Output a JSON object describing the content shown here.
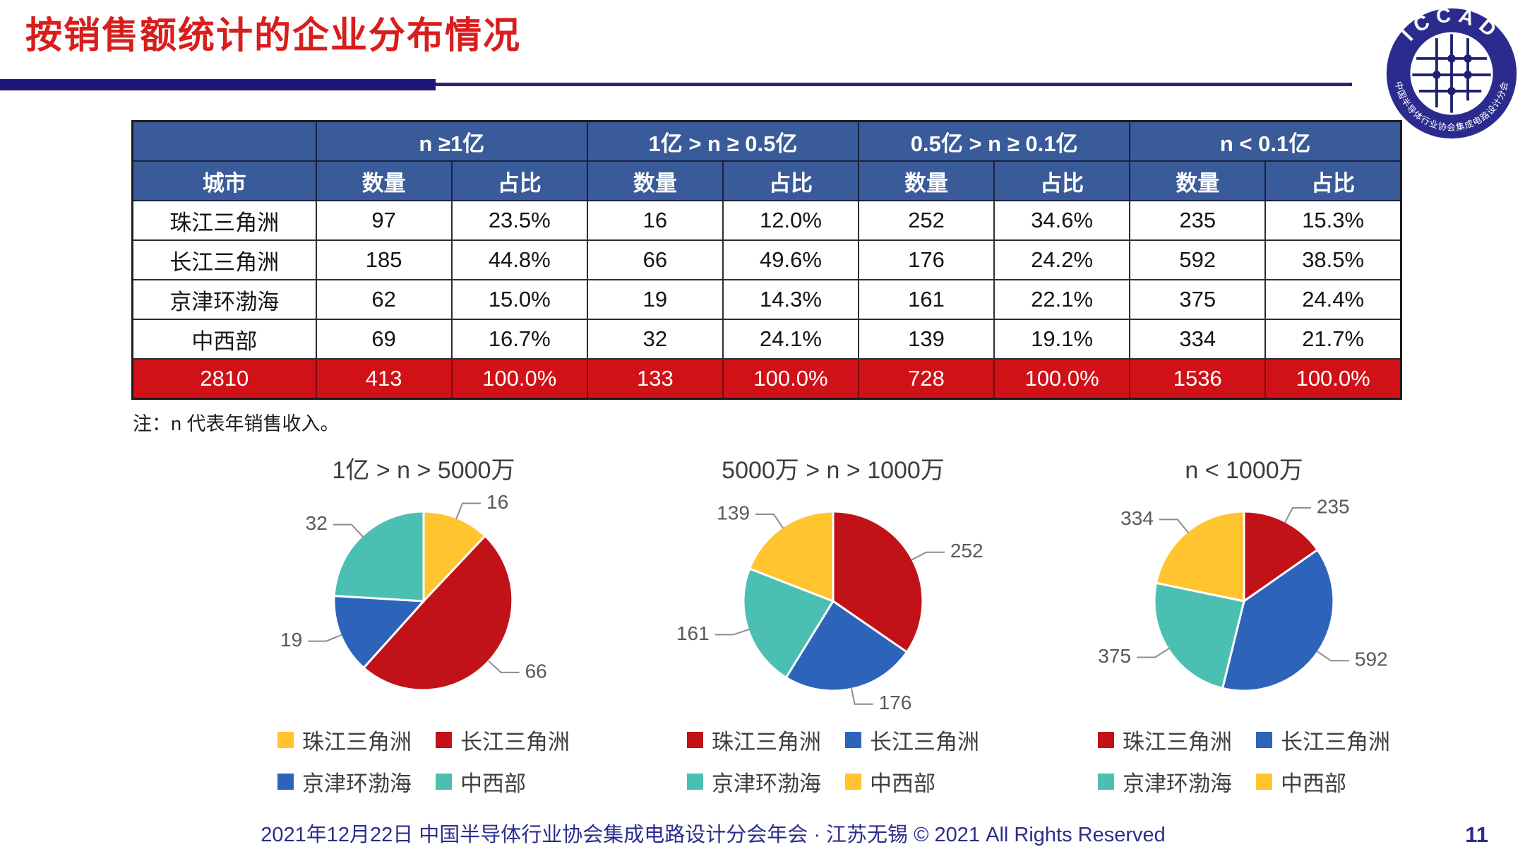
{
  "slide": {
    "title": "按销售额统计的企业分布情况",
    "note": "注：n 代表年销售收入。",
    "footer": "2021年12月22日 中国半导体行业协会集成电路设计分会年会 · 江苏无锡 © 2021 All Rights Reserved",
    "page_number": "11",
    "logo": {
      "text": "ICCAD",
      "subtext": "中国半导体行业协会集成电路设计分会"
    }
  },
  "colors": {
    "title_red": "#d91d1d",
    "navy_bar": "#1d1678",
    "header_blue": "#3a5b99",
    "total_red": "#d01117",
    "pie_yellow": "#ffc42e",
    "pie_red": "#c11218",
    "pie_blue": "#2d64ba",
    "pie_teal": "#4bc0b2",
    "label_gray": "#595959",
    "footer_navy": "#2b2d8c"
  },
  "table": {
    "group_headers": [
      "n ≥1亿",
      "1亿 > n ≥ 0.5亿",
      "0.5亿 > n ≥ 0.1亿",
      "n < 0.1亿"
    ],
    "sub_headers": {
      "city": "城市",
      "count": "数量",
      "share": "占比"
    },
    "rows": [
      {
        "city": "珠江三角洲",
        "cells": [
          "97",
          "23.5%",
          "16",
          "12.0%",
          "252",
          "34.6%",
          "235",
          "15.3%"
        ]
      },
      {
        "city": "长江三角洲",
        "cells": [
          "185",
          "44.8%",
          "66",
          "49.6%",
          "176",
          "24.2%",
          "592",
          "38.5%"
        ]
      },
      {
        "city": "京津环渤海",
        "cells": [
          "62",
          "15.0%",
          "19",
          "14.3%",
          "161",
          "22.1%",
          "375",
          "24.4%"
        ]
      },
      {
        "city": "中西部",
        "cells": [
          "69",
          "16.7%",
          "32",
          "24.1%",
          "139",
          "19.1%",
          "334",
          "21.7%"
        ]
      }
    ],
    "total_row": {
      "city": "2810",
      "cells": [
        "413",
        "100.0%",
        "133",
        "100.0%",
        "728",
        "100.0%",
        "1536",
        "100.0%"
      ]
    }
  },
  "chart_data": [
    {
      "type": "pie",
      "title": "1亿 > n > 5000万",
      "categories": [
        "珠江三角洲",
        "长江三角洲",
        "京津环渤海",
        "中西部"
      ],
      "values": [
        16,
        66,
        19,
        32
      ],
      "total": 133,
      "colors": [
        "#ffc42e",
        "#c11218",
        "#2d64ba",
        "#4bc0b2"
      ],
      "start_angle_deg": 0,
      "direction": "clockwise",
      "legend_position": "bottom"
    },
    {
      "type": "pie",
      "title": "5000万 > n > 1000万",
      "categories": [
        "珠江三角洲",
        "长江三角洲",
        "京津环渤海",
        "中西部"
      ],
      "values": [
        252,
        176,
        161,
        139
      ],
      "total": 728,
      "colors": [
        "#c11218",
        "#2d64ba",
        "#4bc0b2",
        "#ffc42e"
      ],
      "start_angle_deg": 0,
      "direction": "clockwise",
      "legend_position": "bottom"
    },
    {
      "type": "pie",
      "title": "n < 1000万",
      "categories": [
        "珠江三角洲",
        "长江三角洲",
        "京津环渤海",
        "中西部"
      ],
      "values": [
        235,
        592,
        375,
        334
      ],
      "total": 1536,
      "colors": [
        "#c11218",
        "#2d64ba",
        "#4bc0b2",
        "#ffc42e"
      ],
      "start_angle_deg": 0,
      "direction": "clockwise",
      "legend_position": "bottom"
    }
  ]
}
